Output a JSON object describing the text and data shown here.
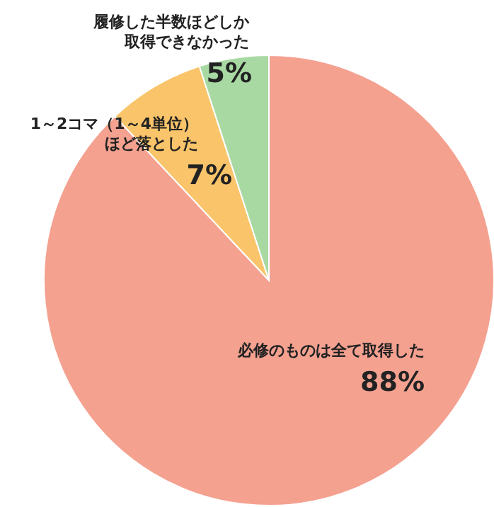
{
  "chart_data": {
    "type": "pie",
    "categories": [
      "必修のものは全て取得した",
      "1～2コマ（1～4単位）ほど落とした",
      "履修した半数ほどしか取得できなかった"
    ],
    "values": [
      88,
      7,
      5
    ],
    "colors": [
      "#f4a190",
      "#f9c46a",
      "#a9d9a3"
    ],
    "value_labels": [
      "88%",
      "7%",
      "5%"
    ]
  }
}
